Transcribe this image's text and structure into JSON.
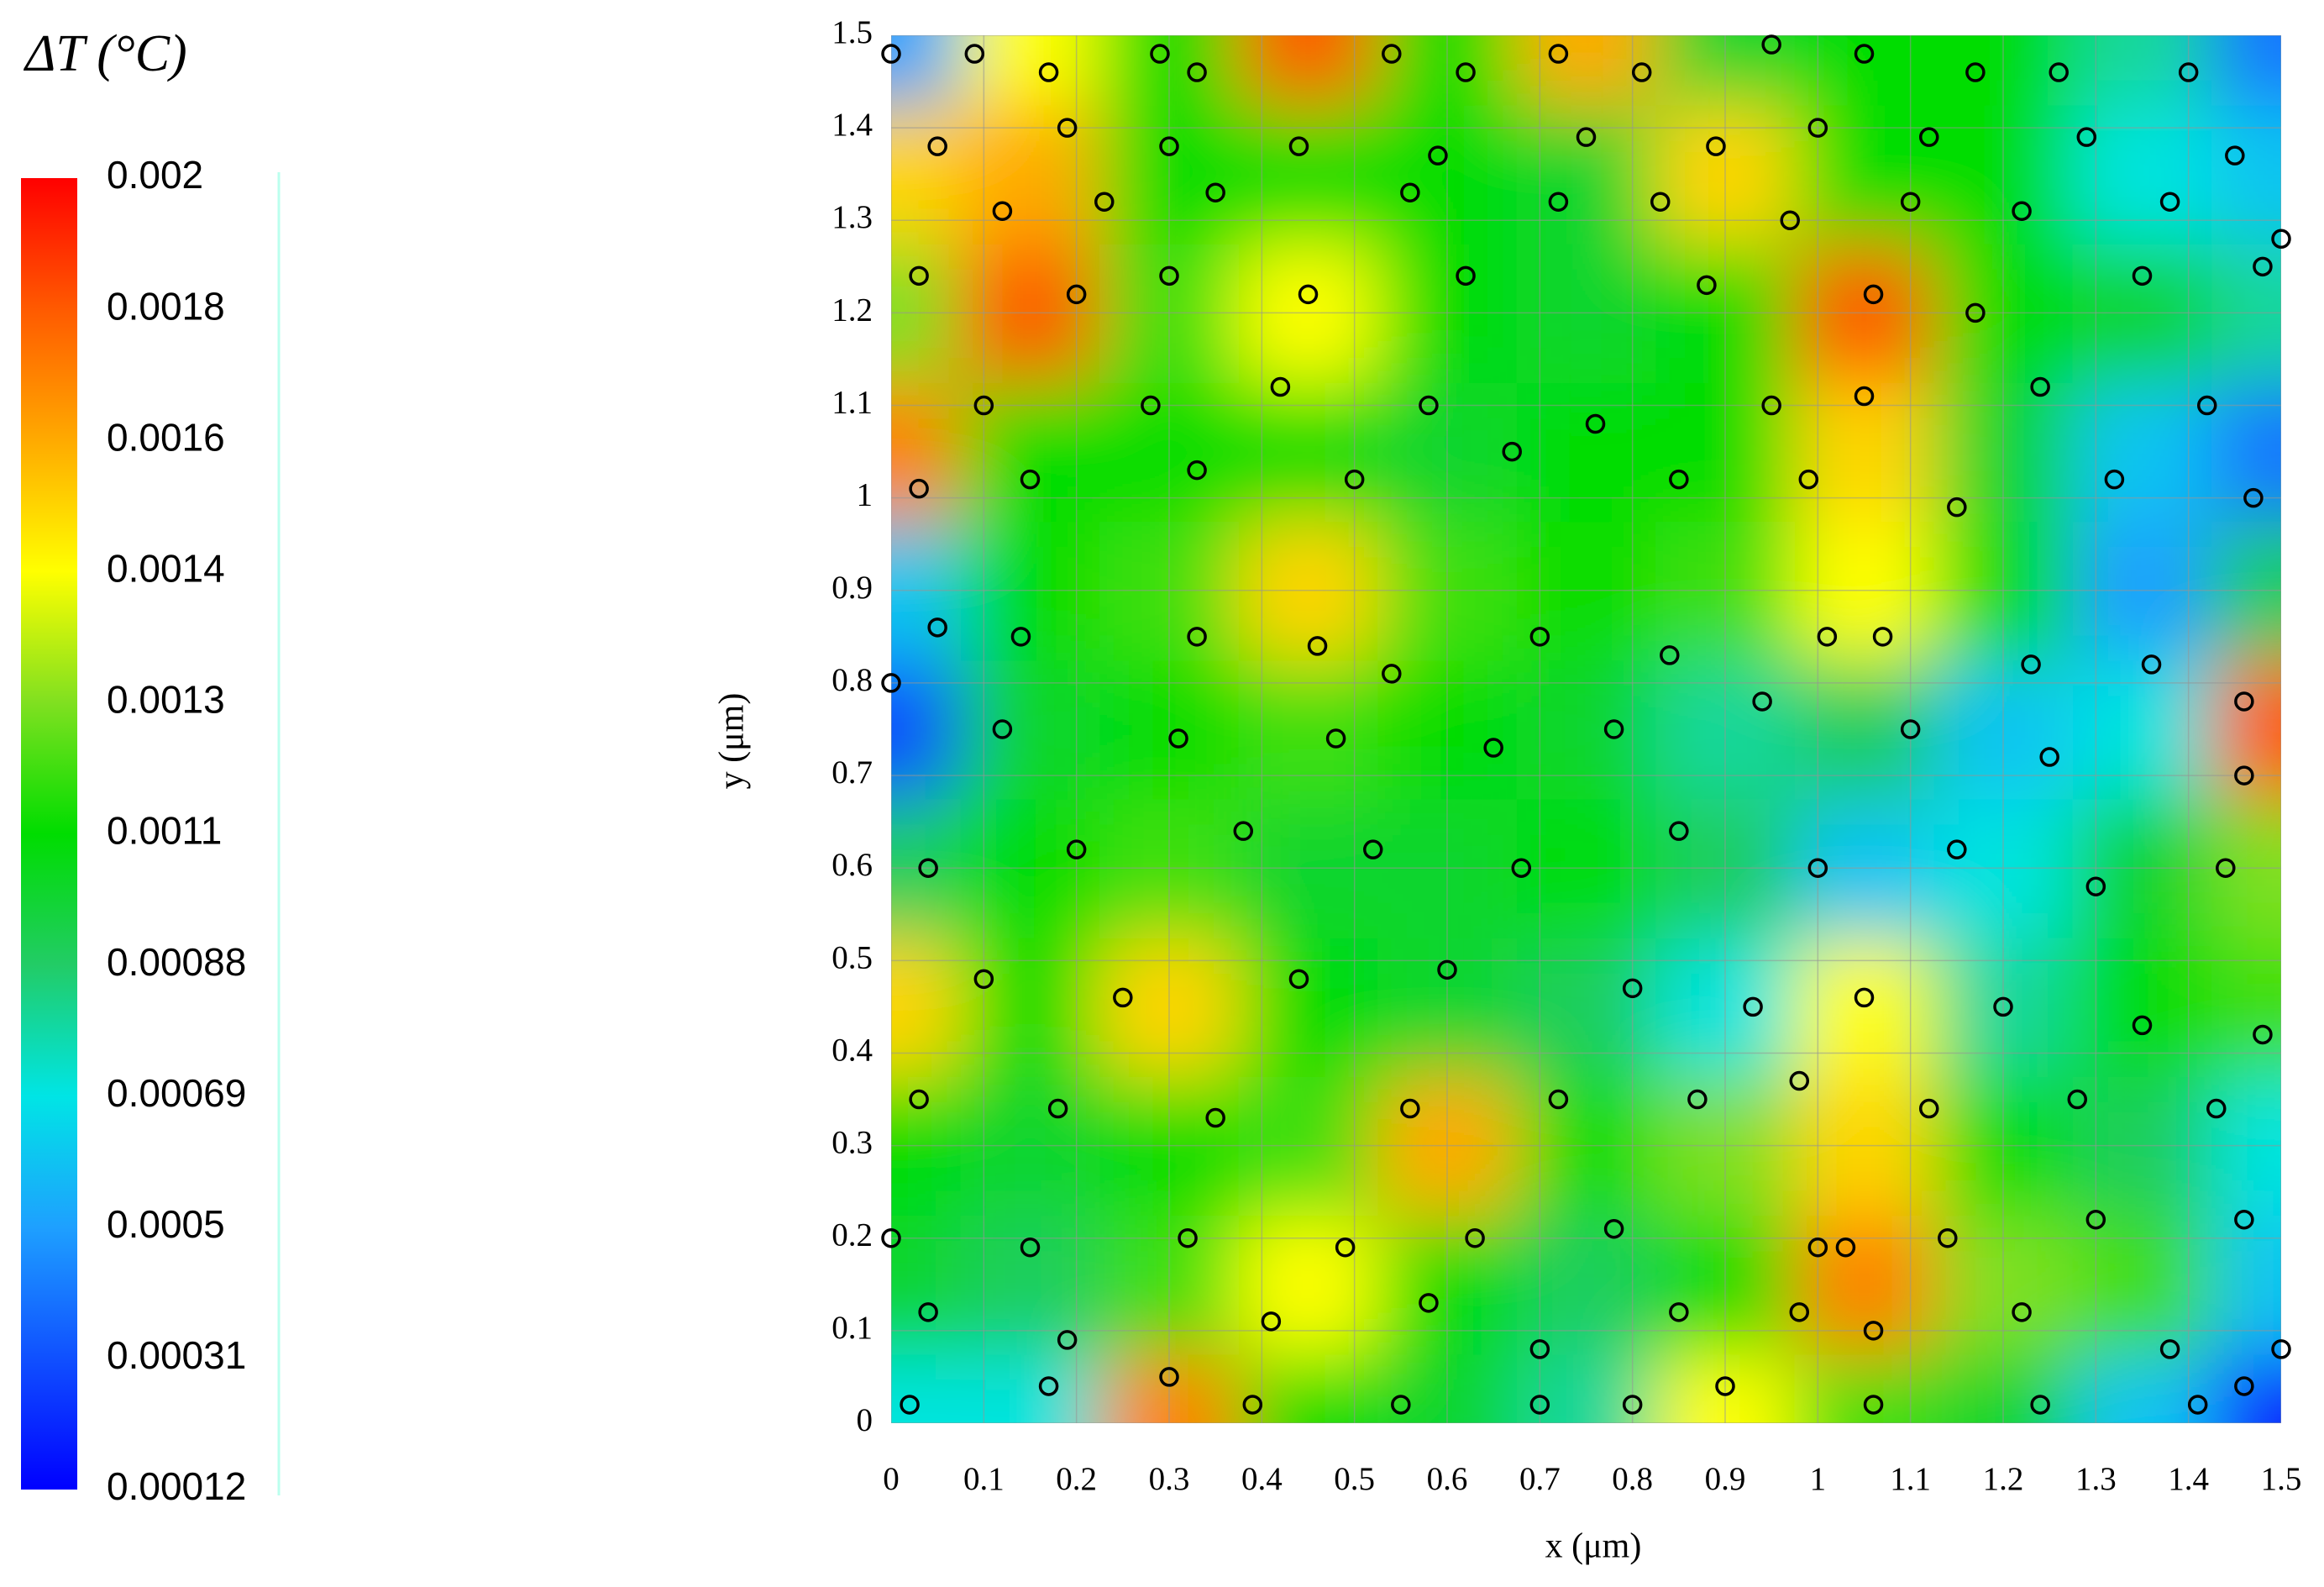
{
  "chart_data": {
    "type": "heatmap",
    "xlabel": "x (μm)",
    "ylabel": "y (μm)",
    "xlim": [
      0,
      1.5
    ],
    "ylim": [
      0,
      1.5
    ],
    "xticks": [
      0,
      0.1,
      0.2,
      0.3,
      0.4,
      0.5,
      0.6,
      0.7,
      0.8,
      0.9,
      1,
      1.1,
      1.2,
      1.3,
      1.4,
      1.5
    ],
    "yticks": [
      0,
      0.1,
      0.2,
      0.3,
      0.4,
      0.5,
      0.6,
      0.7,
      0.8,
      0.9,
      1,
      1.1,
      1.2,
      1.3,
      1.4,
      1.5
    ],
    "grid": true,
    "colorbar": {
      "title": "ΔT (°C)",
      "ticks": [
        0.002,
        0.0018,
        0.0016,
        0.0014,
        0.0013,
        0.0011,
        0.00088,
        0.00069,
        0.0005,
        0.00031,
        0.00012
      ],
      "colors": [
        "#ff0000",
        "#ff5a00",
        "#ffaa00",
        "#ffff00",
        "#80e020",
        "#00dd00",
        "#22cc66",
        "#00e5e5",
        "#1ea0ff",
        "#1050ff",
        "#0000ff"
      ]
    },
    "x_grid": [
      0,
      0.15,
      0.3,
      0.45,
      0.6,
      0.75,
      0.9,
      1.05,
      1.2,
      1.35,
      1.5
    ],
    "y_grid": [
      0,
      0.15,
      0.3,
      0.45,
      0.6,
      0.75,
      0.9,
      1.05,
      1.2,
      1.35,
      1.5
    ],
    "z": [
      [
        0.0007,
        0.0007,
        0.0017,
        0.0011,
        0.001,
        0.0008,
        0.0014,
        0.0012,
        0.001,
        0.0006,
        0.0002
      ],
      [
        0.001,
        0.0009,
        0.0012,
        0.0014,
        0.0011,
        0.0009,
        0.0011,
        0.0017,
        0.0013,
        0.0012,
        0.0006
      ],
      [
        0.0011,
        0.001,
        0.0011,
        0.0012,
        0.0016,
        0.0011,
        0.0013,
        0.0015,
        0.0011,
        0.0009,
        0.0007
      ],
      [
        0.0015,
        0.0011,
        0.0015,
        0.0011,
        0.001,
        0.0009,
        0.0007,
        0.0014,
        0.0008,
        0.0011,
        0.0012
      ],
      [
        0.0009,
        0.0011,
        0.0012,
        0.001,
        0.001,
        0.0011,
        0.0009,
        0.0006,
        0.0007,
        0.001,
        0.0013
      ],
      [
        0.0003,
        0.001,
        0.0011,
        0.0012,
        0.0011,
        0.001,
        0.0008,
        0.0009,
        0.0006,
        0.0007,
        0.0018
      ],
      [
        0.0006,
        0.0011,
        0.0012,
        0.0015,
        0.0012,
        0.0011,
        0.0012,
        0.0014,
        0.0011,
        0.0005,
        0.0009
      ],
      [
        0.0017,
        0.0011,
        0.0011,
        0.0011,
        0.001,
        0.0011,
        0.0011,
        0.0015,
        0.001,
        0.0006,
        0.0004
      ],
      [
        0.0013,
        0.0018,
        0.0012,
        0.0014,
        0.0011,
        0.001,
        0.0011,
        0.0018,
        0.0011,
        0.001,
        0.0008
      ],
      [
        0.0015,
        0.0016,
        0.0011,
        0.0011,
        0.0011,
        0.001,
        0.0015,
        0.0011,
        0.0011,
        0.0007,
        0.0006
      ],
      [
        0.0005,
        0.0014,
        0.0011,
        0.0018,
        0.0011,
        0.0016,
        0.001,
        0.0011,
        0.0011,
        0.0008,
        0.0004
      ]
    ],
    "points": {
      "x": [
        0,
        0.09,
        0.17,
        0.29,
        0.33,
        0.54,
        0.62,
        0.72,
        0.81,
        0.95,
        1.05,
        1.17,
        1.26,
        1.4,
        0.05,
        0.19,
        0.3,
        0.44,
        0.59,
        0.75,
        0.89,
        1.0,
        1.12,
        1.29,
        1.45,
        0.12,
        0.23,
        0.35,
        0.56,
        0.72,
        0.83,
        0.97,
        1.1,
        1.22,
        1.38,
        1.5,
        0.03,
        0.2,
        0.3,
        0.45,
        0.62,
        0.88,
        1.06,
        1.17,
        1.35,
        1.48,
        0.1,
        0.28,
        0.42,
        0.58,
        0.76,
        0.95,
        1.05,
        1.24,
        1.42,
        0.03,
        0.15,
        0.33,
        0.5,
        0.67,
        0.85,
        0.99,
        1.15,
        1.32,
        1.47,
        0.05,
        0.14,
        0.33,
        0.46,
        0.54,
        0.7,
        0.84,
        1.01,
        1.07,
        1.23,
        1.36,
        1.46,
        0,
        0.12,
        0.31,
        0.48,
        0.65,
        0.78,
        0.94,
        1.1,
        1.25,
        1.46,
        0.04,
        0.2,
        0.38,
        0.52,
        0.68,
        0.85,
        1.0,
        1.15,
        1.3,
        1.44,
        0.1,
        0.25,
        0.44,
        0.6,
        0.8,
        0.93,
        1.05,
        1.2,
        1.35,
        1.48,
        0.03,
        0.18,
        0.35,
        0.56,
        0.72,
        0.87,
        0.98,
        1.12,
        1.28,
        1.43,
        0,
        0.15,
        0.32,
        0.49,
        0.63,
        0.78,
        1.0,
        1.03,
        1.14,
        1.3,
        1.46,
        0.04,
        0.19,
        0.3,
        0.41,
        0.58,
        0.7,
        0.85,
        0.98,
        1.06,
        1.22,
        1.38,
        1.5,
        0.02,
        0.17,
        0.39,
        0.55,
        0.7,
        0.8,
        0.9,
        1.06,
        1.24,
        1.41,
        1.46
      ],
      "y": [
        1.48,
        1.48,
        1.46,
        1.48,
        1.46,
        1.48,
        1.46,
        1.48,
        1.46,
        1.49,
        1.48,
        1.46,
        1.46,
        1.46,
        1.38,
        1.4,
        1.38,
        1.38,
        1.37,
        1.39,
        1.38,
        1.4,
        1.39,
        1.39,
        1.37,
        1.31,
        1.32,
        1.33,
        1.33,
        1.32,
        1.32,
        1.3,
        1.32,
        1.31,
        1.32,
        1.28,
        1.24,
        1.22,
        1.24,
        1.22,
        1.24,
        1.23,
        1.22,
        1.2,
        1.24,
        1.25,
        1.1,
        1.1,
        1.12,
        1.1,
        1.08,
        1.1,
        1.11,
        1.12,
        1.1,
        1.01,
        1.02,
        1.03,
        1.02,
        1.05,
        1.02,
        1.02,
        0.99,
        1.02,
        1.0,
        0.86,
        0.85,
        0.85,
        0.84,
        0.81,
        0.85,
        0.83,
        0.85,
        0.85,
        0.82,
        0.82,
        0.78,
        0.8,
        0.75,
        0.74,
        0.74,
        0.73,
        0.75,
        0.78,
        0.75,
        0.72,
        0.7,
        0.6,
        0.62,
        0.64,
        0.62,
        0.6,
        0.64,
        0.6,
        0.62,
        0.58,
        0.6,
        0.48,
        0.46,
        0.48,
        0.49,
        0.47,
        0.45,
        0.46,
        0.45,
        0.43,
        0.42,
        0.35,
        0.34,
        0.33,
        0.34,
        0.35,
        0.35,
        0.37,
        0.34,
        0.35,
        0.34,
        0.2,
        0.19,
        0.2,
        0.19,
        0.2,
        0.21,
        0.19,
        0.19,
        0.2,
        0.22,
        0.22,
        0.12,
        0.09,
        0.05,
        0.11,
        0.13,
        0.08,
        0.12,
        0.12,
        0.1,
        0.12,
        0.08,
        0.08,
        0.02,
        0.04,
        0.02,
        0.02,
        0.02,
        0.02,
        0.04,
        0.02,
        0.02,
        0.02,
        0.04
      ]
    }
  }
}
